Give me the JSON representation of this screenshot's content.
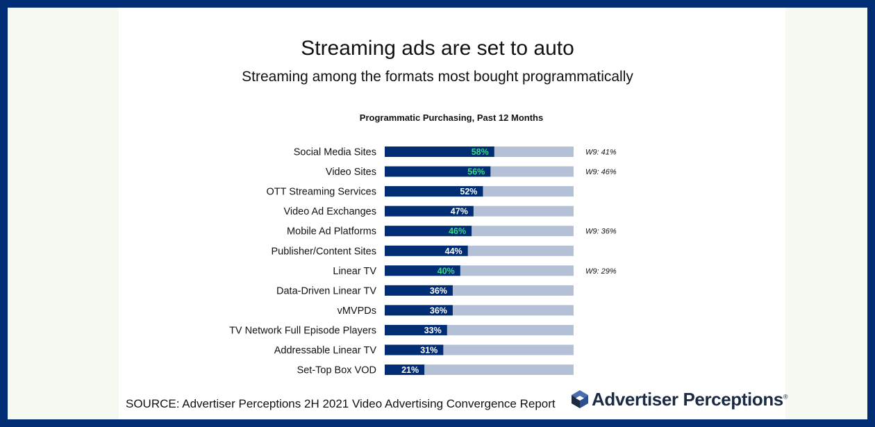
{
  "header": {
    "title": "Streaming ads are set to auto",
    "subtitle": "Streaming among the formats most bought programmatically"
  },
  "chart_data": {
    "type": "bar",
    "orientation": "horizontal",
    "stacked_to_total": true,
    "title": "Programmatic Purchasing, Past 12 Months",
    "xlim": [
      0,
      100
    ],
    "categories": [
      "Social Media Sites",
      "Video Sites",
      "OTT Streaming Services",
      "Video Ad Exchanges",
      "Mobile Ad Platforms",
      "Publisher/Content Sites",
      "Linear TV",
      "Data-Driven Linear TV",
      "vMVPDs",
      "TV Network Full Episode Players",
      "Addressable Linear TV",
      "Set-Top Box VOD"
    ],
    "values": [
      58,
      56,
      52,
      47,
      46,
      44,
      40,
      36,
      36,
      33,
      31,
      21
    ],
    "value_labels": [
      "58%",
      "56%",
      "52%",
      "47%",
      "46%",
      "44%",
      "40%",
      "36%",
      "36%",
      "33%",
      "31%",
      "21%"
    ],
    "highlighted": [
      true,
      true,
      false,
      false,
      true,
      false,
      true,
      false,
      false,
      false,
      false,
      false
    ],
    "annotations": [
      "W9: 41%",
      "W9: 46%",
      "",
      "",
      "W9: 36%",
      "",
      "W9: 29%",
      "",
      "",
      "",
      "",
      ""
    ],
    "colors": {
      "bar": "#002D74",
      "track": "#B3C0D6",
      "label": "#FFFFFF",
      "label_highlight": "#3DD68C",
      "category_text": "#111111",
      "annotation_text": "#111111"
    }
  },
  "footer": {
    "source": "SOURCE: Advertiser Perceptions 2H 2021 Video Advertising Convergence Report",
    "logo_text": "Advertiser Perceptions",
    "logo_mark": "®"
  }
}
